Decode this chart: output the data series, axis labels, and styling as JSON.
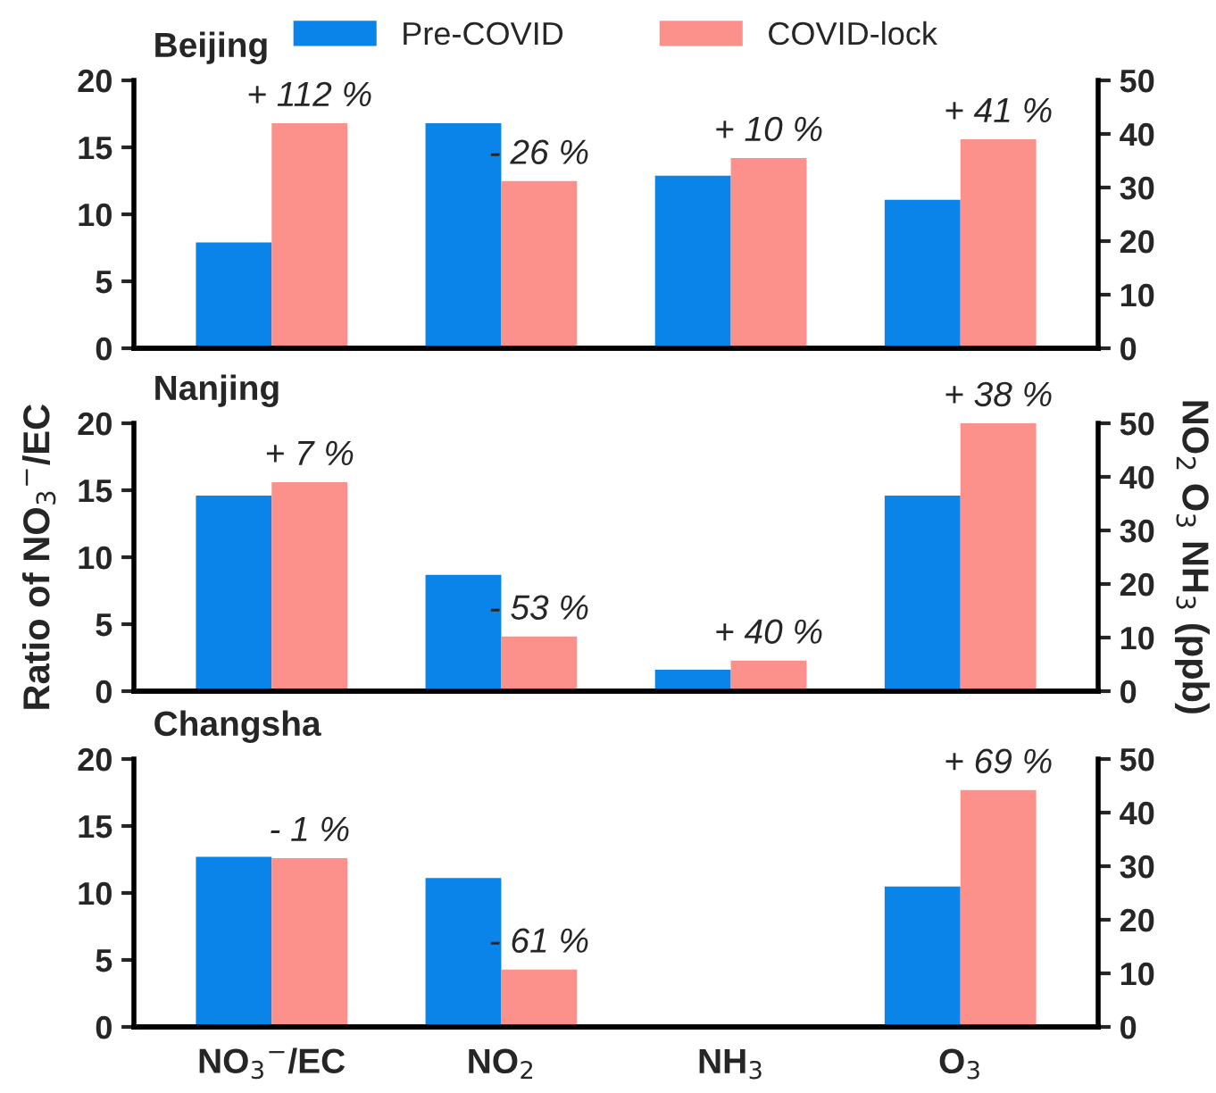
{
  "chart_data": [
    {
      "type": "bar",
      "title": "Beijing",
      "categories": [
        null,
        null,
        null,
        null
      ],
      "ylim": [
        0,
        20
      ],
      "yticks": [
        0,
        5,
        10,
        15,
        20
      ],
      "y2lim": [
        0,
        50
      ],
      "y2ticks": [
        0,
        10,
        20,
        30,
        40,
        50
      ],
      "tick_labels": "y",
      "legend": "top",
      "grid": false,
      "series": [
        {
          "name": "Pre-COVID",
          "color": "#0a84e8",
          "values": [
            7.9,
            null,
            null,
            null
          ]
        },
        {
          "name": "COVID-lock",
          "color": "#fc918b",
          "values": [
            16.8,
            null,
            null,
            null
          ]
        },
        {
          "color": "#0a84e8",
          "axis": "y2",
          "values": [
            null,
            42,
            32.2,
            27.7
          ]
        },
        {
          "color": "#fc918b",
          "axis": "y2",
          "values": [
            null,
            31.2,
            35.5,
            39
          ]
        }
      ],
      "annotations": [
        "+ 112 %",
        "- 26 %",
        "+ 10 %",
        "+ 41 %"
      ]
    },
    {
      "type": "bar",
      "title": "Nanjing",
      "ylabel": "Ratio of NO$_{3}$$^{−}$/EC",
      "y2label": "NO$_{2}$ O$_{3}$ NH$_{3}$ (ppb)",
      "categories": [
        null,
        null,
        null,
        null
      ],
      "ylim": [
        0,
        20
      ],
      "yticks": [
        0,
        5,
        10,
        15,
        20
      ],
      "y2lim": [
        0,
        50
      ],
      "y2ticks": [
        0,
        10,
        20,
        30,
        40,
        50
      ],
      "tick_labels": "y",
      "grid": false,
      "series": [
        {
          "color": "#0a84e8",
          "values": [
            14.6,
            null,
            null,
            null
          ]
        },
        {
          "color": "#fc918b",
          "values": [
            15.6,
            null,
            null,
            null
          ]
        },
        {
          "color": "#0a84e8",
          "axis": "y2",
          "values": [
            null,
            21.7,
            4,
            36.5
          ]
        },
        {
          "color": "#fc918b",
          "axis": "y2",
          "values": [
            null,
            10.2,
            5.7,
            50
          ]
        }
      ],
      "annotations": [
        "+ 7 %",
        "- 53 %",
        "+ 40 %",
        "+ 38 %"
      ]
    },
    {
      "type": "bar",
      "title": "Changsha",
      "categories": [
        "NO$_{3}$$^{−}$/EC",
        "NO$_{2}$",
        "NH$_{3}$",
        "O$_{3}$"
      ],
      "ylim": [
        0,
        20
      ],
      "yticks": [
        0,
        5,
        10,
        15,
        20
      ],
      "y2lim": [
        0,
        50
      ],
      "y2ticks": [
        0,
        10,
        20,
        30,
        40,
        50
      ],
      "grid": false,
      "series": [
        {
          "color": "#0a84e8",
          "values": [
            12.7,
            null,
            null,
            null
          ]
        },
        {
          "color": "#fc918b",
          "values": [
            12.6,
            null,
            null,
            null
          ]
        },
        {
          "color": "#0a84e8",
          "axis": "y2",
          "values": [
            null,
            27.8,
            null,
            26.2
          ]
        },
        {
          "color": "#fc918b",
          "axis": "y2",
          "values": [
            null,
            10.7,
            null,
            44.2
          ]
        }
      ],
      "annotations": [
        "- 1 %",
        "- 61 %",
        "+ 69 %"
      ]
    }
  ]
}
